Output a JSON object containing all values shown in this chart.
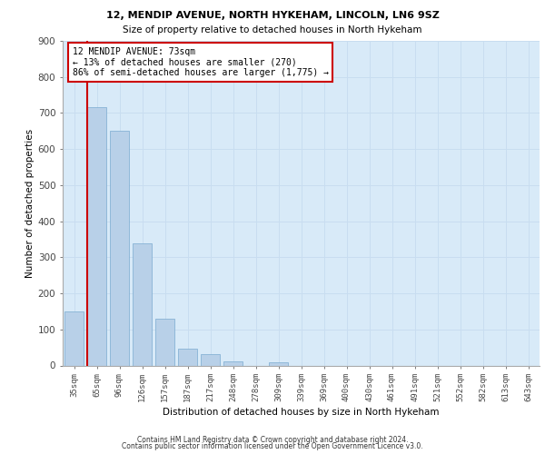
{
  "title1": "12, MENDIP AVENUE, NORTH HYKEHAM, LINCOLN, LN6 9SZ",
  "title2": "Size of property relative to detached houses in North Hykeham",
  "xlabel": "Distribution of detached houses by size in North Hykeham",
  "ylabel": "Number of detached properties",
  "categories": [
    "35sqm",
    "65sqm",
    "96sqm",
    "126sqm",
    "157sqm",
    "187sqm",
    "217sqm",
    "248sqm",
    "278sqm",
    "309sqm",
    "339sqm",
    "369sqm",
    "400sqm",
    "430sqm",
    "461sqm",
    "491sqm",
    "521sqm",
    "552sqm",
    "582sqm",
    "613sqm",
    "643sqm"
  ],
  "values": [
    150,
    717,
    650,
    338,
    130,
    46,
    32,
    12,
    0,
    8,
    0,
    0,
    0,
    0,
    0,
    0,
    0,
    0,
    0,
    0,
    0
  ],
  "bar_color": "#b8d0e8",
  "bar_edge_color": "#7aaad0",
  "vline_color": "#cc0000",
  "annotation_text": "12 MENDIP AVENUE: 73sqm\n← 13% of detached houses are smaller (270)\n86% of semi-detached houses are larger (1,775) →",
  "annotation_box_color": "#ffffff",
  "annotation_box_edge": "#cc0000",
  "ylim": [
    0,
    900
  ],
  "yticks": [
    0,
    100,
    200,
    300,
    400,
    500,
    600,
    700,
    800,
    900
  ],
  "grid_color": "#c8ddf0",
  "bg_color": "#d8eaf8",
  "footer1": "Contains HM Land Registry data © Crown copyright and database right 2024.",
  "footer2": "Contains public sector information licensed under the Open Government Licence v3.0."
}
